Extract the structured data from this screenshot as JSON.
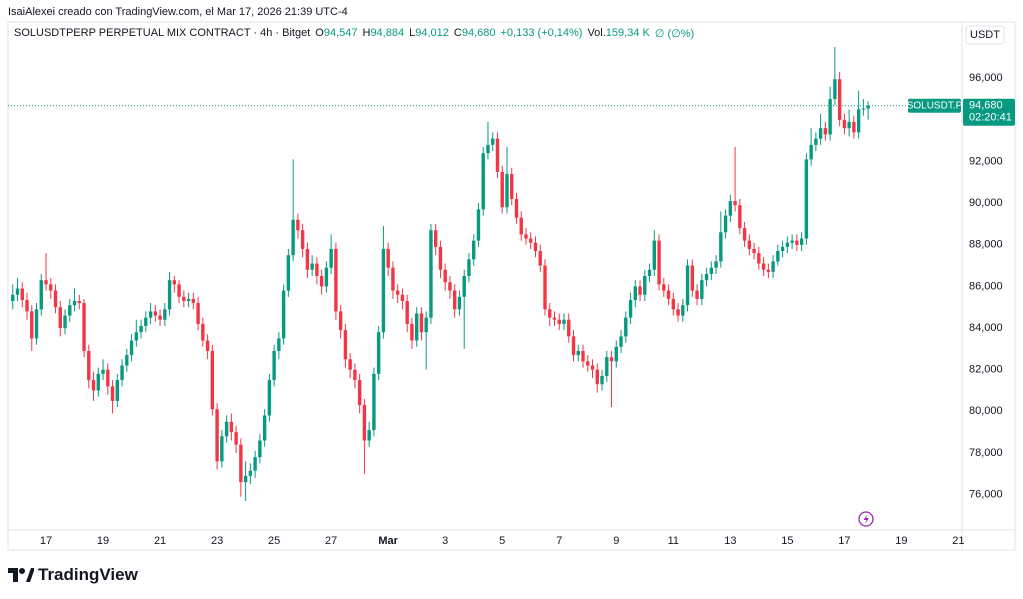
{
  "header": "IsaiAlexei creado con TradingView.com, el Mar 17, 2026 21:39 UTC-4",
  "footer_logo": "TradingView",
  "chart_data": {
    "type": "candlestick",
    "title": "SOLUSDTPERP PERPETUAL MIX CONTRACT · 4h · Bitget",
    "ohlc_legend": [
      {
        "label": "O",
        "value": "94,547"
      },
      {
        "label": "H",
        "value": "94,884"
      },
      {
        "label": "L",
        "value": "94,012"
      },
      {
        "label": "C",
        "value": "94,680"
      }
    ],
    "change": "+0,133 (+0,14%)",
    "volume_label": "Vol.",
    "volume": "159,34 K",
    "volume_change": "∅ (∅%)",
    "currency": "USDT",
    "last_price": {
      "symbol": "SOLUSDT.P",
      "price": "94,680",
      "countdown": "02:20:41"
    },
    "up_color": "#089981",
    "down_color": "#f23645",
    "x": [
      "2026-02-15T20:00",
      "2026-02-16T00:00",
      "2026-02-16T04:00",
      "2026-02-16T08:00",
      "2026-02-16T12:00",
      "2026-02-16T16:00",
      "2026-02-16T20:00",
      "2026-02-17T00:00",
      "2026-02-17T04:00",
      "2026-02-17T08:00",
      "2026-02-17T12:00",
      "2026-02-17T16:00",
      "2026-02-17T20:00",
      "2026-02-18T00:00",
      "2026-02-18T04:00",
      "2026-02-18T08:00",
      "2026-02-18T12:00",
      "2026-02-18T16:00",
      "2026-02-18T20:00",
      "2026-02-19T00:00",
      "2026-02-19T04:00",
      "2026-02-19T08:00",
      "2026-02-19T12:00",
      "2026-02-19T16:00",
      "2026-02-19T20:00",
      "2026-02-20T00:00",
      "2026-02-20T04:00",
      "2026-02-20T08:00",
      "2026-02-20T12:00",
      "2026-02-20T16:00",
      "2026-02-20T20:00",
      "2026-02-21T00:00",
      "2026-02-21T04:00",
      "2026-02-21T08:00",
      "2026-02-21T12:00",
      "2026-02-21T16:00",
      "2026-02-21T20:00",
      "2026-02-22T00:00",
      "2026-02-22T04:00",
      "2026-02-22T08:00",
      "2026-02-22T12:00",
      "2026-02-22T16:00",
      "2026-02-22T20:00",
      "2026-02-23T00:00",
      "2026-02-23T04:00",
      "2026-02-23T08:00",
      "2026-02-23T12:00",
      "2026-02-23T16:00",
      "2026-02-23T20:00",
      "2026-02-24T00:00",
      "2026-02-24T04:00",
      "2026-02-24T08:00",
      "2026-02-24T12:00",
      "2026-02-24T16:00",
      "2026-02-24T20:00",
      "2026-02-25T00:00",
      "2026-02-25T04:00",
      "2026-02-25T08:00",
      "2026-02-25T12:00",
      "2026-02-25T16:00",
      "2026-02-25T20:00",
      "2026-02-26T00:00",
      "2026-02-26T04:00",
      "2026-02-26T08:00",
      "2026-02-26T12:00",
      "2026-02-26T16:00",
      "2026-02-26T20:00",
      "2026-02-27T00:00",
      "2026-02-27T04:00",
      "2026-02-27T08:00",
      "2026-02-27T12:00",
      "2026-02-27T16:00",
      "2026-02-27T20:00",
      "2026-02-28T00:00",
      "2026-02-28T04:00",
      "2026-02-28T08:00",
      "2026-02-28T12:00",
      "2026-02-28T16:00",
      "2026-02-28T20:00",
      "2026-03-01T00:00",
      "2026-03-01T04:00",
      "2026-03-01T08:00",
      "2026-03-01T12:00",
      "2026-03-01T16:00",
      "2026-03-01T20:00",
      "2026-03-02T00:00",
      "2026-03-02T04:00",
      "2026-03-02T08:00",
      "2026-03-02T12:00",
      "2026-03-02T16:00",
      "2026-03-02T20:00",
      "2026-03-03T00:00",
      "2026-03-03T04:00",
      "2026-03-03T08:00",
      "2026-03-03T12:00",
      "2026-03-03T16:00",
      "2026-03-03T20:00",
      "2026-03-04T00:00",
      "2026-03-04T04:00",
      "2026-03-04T08:00",
      "2026-03-04T12:00",
      "2026-03-04T16:00",
      "2026-03-04T20:00",
      "2026-03-05T00:00",
      "2026-03-05T04:00",
      "2026-03-05T08:00",
      "2026-03-05T12:00",
      "2026-03-05T16:00",
      "2026-03-05T20:00",
      "2026-03-06T00:00",
      "2026-03-06T04:00",
      "2026-03-06T08:00",
      "2026-03-06T12:00",
      "2026-03-06T16:00",
      "2026-03-06T20:00",
      "2026-03-07T00:00",
      "2026-03-07T04:00",
      "2026-03-07T08:00",
      "2026-03-07T12:00",
      "2026-03-07T16:00",
      "2026-03-07T20:00",
      "2026-03-08T00:00",
      "2026-03-08T04:00",
      "2026-03-08T08:00",
      "2026-03-08T12:00",
      "2026-03-08T16:00",
      "2026-03-08T20:00",
      "2026-03-09T00:00",
      "2026-03-09T04:00",
      "2026-03-09T08:00",
      "2026-03-09T12:00",
      "2026-03-09T16:00",
      "2026-03-09T20:00",
      "2026-03-10T00:00",
      "2026-03-10T04:00",
      "2026-03-10T08:00",
      "2026-03-10T12:00",
      "2026-03-10T16:00",
      "2026-03-10T20:00",
      "2026-03-11T00:00",
      "2026-03-11T04:00",
      "2026-03-11T08:00",
      "2026-03-11T12:00",
      "2026-03-11T16:00",
      "2026-03-11T20:00",
      "2026-03-12T00:00",
      "2026-03-12T04:00",
      "2026-03-12T08:00",
      "2026-03-12T12:00",
      "2026-03-12T16:00",
      "2026-03-12T20:00",
      "2026-03-13T00:00",
      "2026-03-13T04:00",
      "2026-03-13T08:00",
      "2026-03-13T12:00",
      "2026-03-13T16:00",
      "2026-03-13T20:00",
      "2026-03-14T00:00",
      "2026-03-14T04:00",
      "2026-03-14T08:00",
      "2026-03-14T12:00",
      "2026-03-14T16:00",
      "2026-03-14T20:00",
      "2026-03-15T00:00",
      "2026-03-15T04:00",
      "2026-03-15T08:00",
      "2026-03-15T12:00",
      "2026-03-15T16:00",
      "2026-03-15T20:00",
      "2026-03-16T00:00",
      "2026-03-16T04:00",
      "2026-03-16T08:00",
      "2026-03-16T12:00",
      "2026-03-16T16:00",
      "2026-03-16T20:00",
      "2026-03-17T00:00",
      "2026-03-17T04:00",
      "2026-03-17T08:00",
      "2026-03-17T12:00",
      "2026-03-17T16:00",
      "2026-03-17T20:00"
    ],
    "open": [
      85300,
      85600,
      85900,
      85350,
      84800,
      83500,
      84900,
      86300,
      86100,
      85800,
      85000,
      84000,
      84600,
      85100,
      85300,
      85200,
      82900,
      81500,
      81000,
      81800,
      82000,
      81200,
      80500,
      81500,
      82200,
      82700,
      83400,
      83800,
      84100,
      84500,
      84800,
      84600,
      84400,
      84900,
      86300,
      86100,
      85500,
      85300,
      85400,
      85200,
      84200,
      83400,
      82900,
      80100,
      77600,
      78800,
      79500,
      79000,
      78400,
      76600,
      76900,
      77150,
      77800,
      78600,
      79800,
      81500,
      82900,
      83500,
      85800,
      87500,
      89200,
      88700,
      87800,
      86800,
      87100,
      86500,
      86000,
      86900,
      87800,
      84800,
      83900,
      82500,
      82000,
      81500,
      80300,
      78600,
      79100,
      81800,
      83800,
      87800,
      86900,
      85800,
      85600,
      85300,
      84200,
      83400,
      84700,
      83800,
      84500,
      88700,
      87900,
      86800,
      86200,
      85800,
      84900,
      85500,
      86500,
      87300,
      88200,
      89700,
      92400,
      92800,
      93100,
      91500,
      89800,
      91400,
      90200,
      89300,
      88500,
      88300,
      88100,
      87700,
      87000,
      84900,
      84500,
      84400,
      84200,
      84400,
      83600,
      82700,
      82900,
      82400,
      82200,
      82000,
      81300,
      81700,
      82600,
      82400,
      83100,
      83600,
      84500,
      85350,
      86000,
      85600,
      86500,
      86800,
      88200,
      86100,
      85800,
      85400,
      84900,
      84600,
      85100,
      87000,
      85800,
      85400,
      86300,
      86600,
      86900,
      87200,
      88600,
      89400,
      90100,
      89900,
      88800,
      88200,
      87800,
      87600,
      87100,
      86800,
      86700,
      87200,
      87700,
      87900,
      88100,
      88200,
      88000,
      88300,
      92100,
      92800,
      93100,
      93600,
      93300,
      95000,
      95950,
      94000,
      93600,
      93900,
      93400,
      94500,
      94547
    ],
    "high": [
      86100,
      86400,
      86200,
      85700,
      85100,
      85200,
      86600,
      87600,
      86400,
      86100,
      85300,
      84900,
      85400,
      85900,
      85600,
      85400,
      83200,
      81900,
      82100,
      82500,
      82300,
      81500,
      81800,
      82500,
      83000,
      83700,
      84400,
      84400,
      84800,
      85200,
      85100,
      84900,
      85200,
      86700,
      86500,
      86300,
      85800,
      85700,
      85700,
      85500,
      84500,
      83700,
      83200,
      80400,
      79100,
      79800,
      79900,
      79300,
      78700,
      77600,
      77500,
      78100,
      78900,
      80100,
      81800,
      83200,
      83800,
      86100,
      87800,
      92100,
      89500,
      89000,
      88100,
      87500,
      87400,
      86800,
      87200,
      88500,
      88100,
      85100,
      84200,
      82800,
      82300,
      81800,
      80600,
      79500,
      82100,
      84100,
      88900,
      88100,
      87200,
      86100,
      85900,
      85600,
      84500,
      85000,
      85000,
      84800,
      89000,
      89000,
      88200,
      87100,
      86500,
      86100,
      85800,
      86800,
      87600,
      88500,
      90000,
      92700,
      93900,
      93400,
      93400,
      91800,
      92700,
      91700,
      90500,
      89600,
      88800,
      88600,
      88400,
      88000,
      87300,
      85200,
      84800,
      84700,
      84700,
      84700,
      83900,
      83200,
      83200,
      82700,
      82500,
      82300,
      82000,
      82900,
      82900,
      83400,
      83900,
      84800,
      85700,
      86300,
      86300,
      86800,
      87100,
      88700,
      88500,
      86400,
      86100,
      85700,
      85200,
      85400,
      87300,
      87300,
      86100,
      86600,
      86900,
      87200,
      87500,
      89600,
      89700,
      90400,
      92700,
      90200,
      89100,
      88500,
      88100,
      87900,
      87400,
      87100,
      87500,
      88000,
      88200,
      88400,
      88500,
      88500,
      88600,
      92400,
      93600,
      93400,
      94300,
      93900,
      95600,
      97500,
      96300,
      94300,
      94500,
      94200,
      95400,
      95000,
      94884
    ],
    "low": [
      84900,
      85300,
      85000,
      84400,
      82900,
      83200,
      84600,
      85800,
      85400,
      84700,
      83600,
      83700,
      84300,
      84800,
      84900,
      82600,
      81100,
      80500,
      80700,
      81500,
      80800,
      79900,
      80200,
      81200,
      81900,
      82400,
      83100,
      83500,
      83800,
      84200,
      84300,
      84100,
      84100,
      84600,
      85700,
      85200,
      85000,
      85000,
      84900,
      83900,
      83100,
      82500,
      79800,
      77200,
      77300,
      78500,
      78600,
      78000,
      75900,
      75700,
      76500,
      76800,
      77500,
      78300,
      79500,
      81200,
      82500,
      83200,
      85500,
      87200,
      88300,
      87400,
      86400,
      86500,
      86100,
      85600,
      85700,
      86600,
      84400,
      83500,
      82100,
      81600,
      81100,
      79900,
      77000,
      78300,
      78800,
      81500,
      83500,
      86500,
      85400,
      85200,
      84900,
      83800,
      83000,
      83100,
      83400,
      82000,
      84200,
      87500,
      86400,
      85800,
      85400,
      84500,
      84600,
      83000,
      86200,
      87000,
      87900,
      89400,
      92100,
      92500,
      91200,
      89500,
      89500,
      89900,
      89000,
      88200,
      88000,
      87800,
      87400,
      86700,
      84600,
      84100,
      84100,
      83900,
      83900,
      83300,
      82400,
      82400,
      82100,
      81900,
      81600,
      80900,
      81000,
      81400,
      80200,
      82100,
      82800,
      83300,
      84200,
      85000,
      85300,
      85300,
      86200,
      86500,
      85800,
      85500,
      85100,
      84600,
      84300,
      84300,
      84800,
      85500,
      85100,
      85100,
      86000,
      86300,
      86600,
      86900,
      88300,
      89100,
      89600,
      88500,
      87900,
      87500,
      87300,
      86800,
      86500,
      86400,
      86400,
      87000,
      87400,
      87600,
      87800,
      87700,
      87700,
      88000,
      91800,
      92500,
      92800,
      93000,
      93000,
      94700,
      93700,
      93300,
      93200,
      93100,
      93100,
      94200,
      94012
    ],
    "close": [
      85600,
      85900,
      85350,
      84800,
      83500,
      84900,
      86300,
      86100,
      85800,
      85000,
      84000,
      84600,
      85100,
      85300,
      85200,
      82900,
      81500,
      81000,
      81800,
      82000,
      81200,
      80500,
      81500,
      82200,
      82700,
      83400,
      83800,
      84100,
      84500,
      84800,
      84600,
      84400,
      84900,
      86300,
      86100,
      85500,
      85300,
      85400,
      85200,
      84200,
      83400,
      82900,
      80100,
      77600,
      78800,
      79500,
      79000,
      78400,
      76600,
      76900,
      77150,
      77800,
      78600,
      79800,
      81500,
      82900,
      83500,
      85800,
      87500,
      89200,
      88700,
      87800,
      86800,
      87100,
      86500,
      86000,
      86900,
      87800,
      84800,
      83900,
      82500,
      82000,
      81500,
      80300,
      78600,
      79100,
      81800,
      83800,
      87800,
      86900,
      85800,
      85600,
      85300,
      84200,
      83400,
      84700,
      83800,
      84500,
      88700,
      87900,
      86800,
      86200,
      85800,
      84900,
      85500,
      86500,
      87300,
      88200,
      89700,
      92400,
      92800,
      93100,
      91500,
      89800,
      91400,
      90200,
      89300,
      88500,
      88300,
      88100,
      87700,
      87000,
      84900,
      84500,
      84400,
      84200,
      84400,
      83600,
      82700,
      82900,
      82400,
      82200,
      82000,
      81300,
      81700,
      82600,
      82400,
      83100,
      83600,
      84500,
      85350,
      86000,
      85600,
      86500,
      86800,
      88200,
      86100,
      85800,
      85400,
      84900,
      84600,
      85100,
      87000,
      85800,
      85400,
      86300,
      86600,
      86900,
      87200,
      88600,
      89400,
      90100,
      89900,
      88800,
      88200,
      87800,
      87600,
      87100,
      86800,
      86700,
      87200,
      87700,
      87900,
      88100,
      88200,
      88000,
      88300,
      92100,
      92800,
      93100,
      93600,
      93300,
      95000,
      95950,
      94000,
      93600,
      93900,
      93400,
      94500,
      94547,
      94680
    ],
    "xlim": [
      "2026-02-15T16:00",
      "2026-03-21T03:00"
    ],
    "xticks": [
      {
        "value": "2026-02-17",
        "label": "17"
      },
      {
        "value": "2026-02-19",
        "label": "19"
      },
      {
        "value": "2026-02-21",
        "label": "21"
      },
      {
        "value": "2026-02-23",
        "label": "23"
      },
      {
        "value": "2026-02-25",
        "label": "25"
      },
      {
        "value": "2026-02-27",
        "label": "27"
      },
      {
        "value": "2026-03-01",
        "label": "Mar"
      },
      {
        "value": "2026-03-03",
        "label": "3"
      },
      {
        "value": "2026-03-05",
        "label": "5"
      },
      {
        "value": "2026-03-07",
        "label": "7"
      },
      {
        "value": "2026-03-09",
        "label": "9"
      },
      {
        "value": "2026-03-11",
        "label": "11"
      },
      {
        "value": "2026-03-13",
        "label": "13"
      },
      {
        "value": "2026-03-15",
        "label": "15"
      },
      {
        "value": "2026-03-17",
        "label": "17"
      },
      {
        "value": "2026-03-19",
        "label": "19"
      },
      {
        "value": "2026-03-21",
        "label": "21"
      }
    ],
    "ylim": [
      74300,
      98700
    ],
    "yticks": [
      {
        "value": 76000,
        "label": "76,000"
      },
      {
        "value": 78000,
        "label": "78,000"
      },
      {
        "value": 80000,
        "label": "80,000"
      },
      {
        "value": 82000,
        "label": "82,000"
      },
      {
        "value": 84000,
        "label": "84,000"
      },
      {
        "value": 86000,
        "label": "86,000"
      },
      {
        "value": 88000,
        "label": "88,000"
      },
      {
        "value": 90000,
        "label": "90,000"
      },
      {
        "value": 92000,
        "label": "92,000"
      },
      {
        "value": 94000,
        "label": "94,000"
      },
      {
        "value": 96000,
        "label": "96,000"
      }
    ],
    "grid": false
  }
}
